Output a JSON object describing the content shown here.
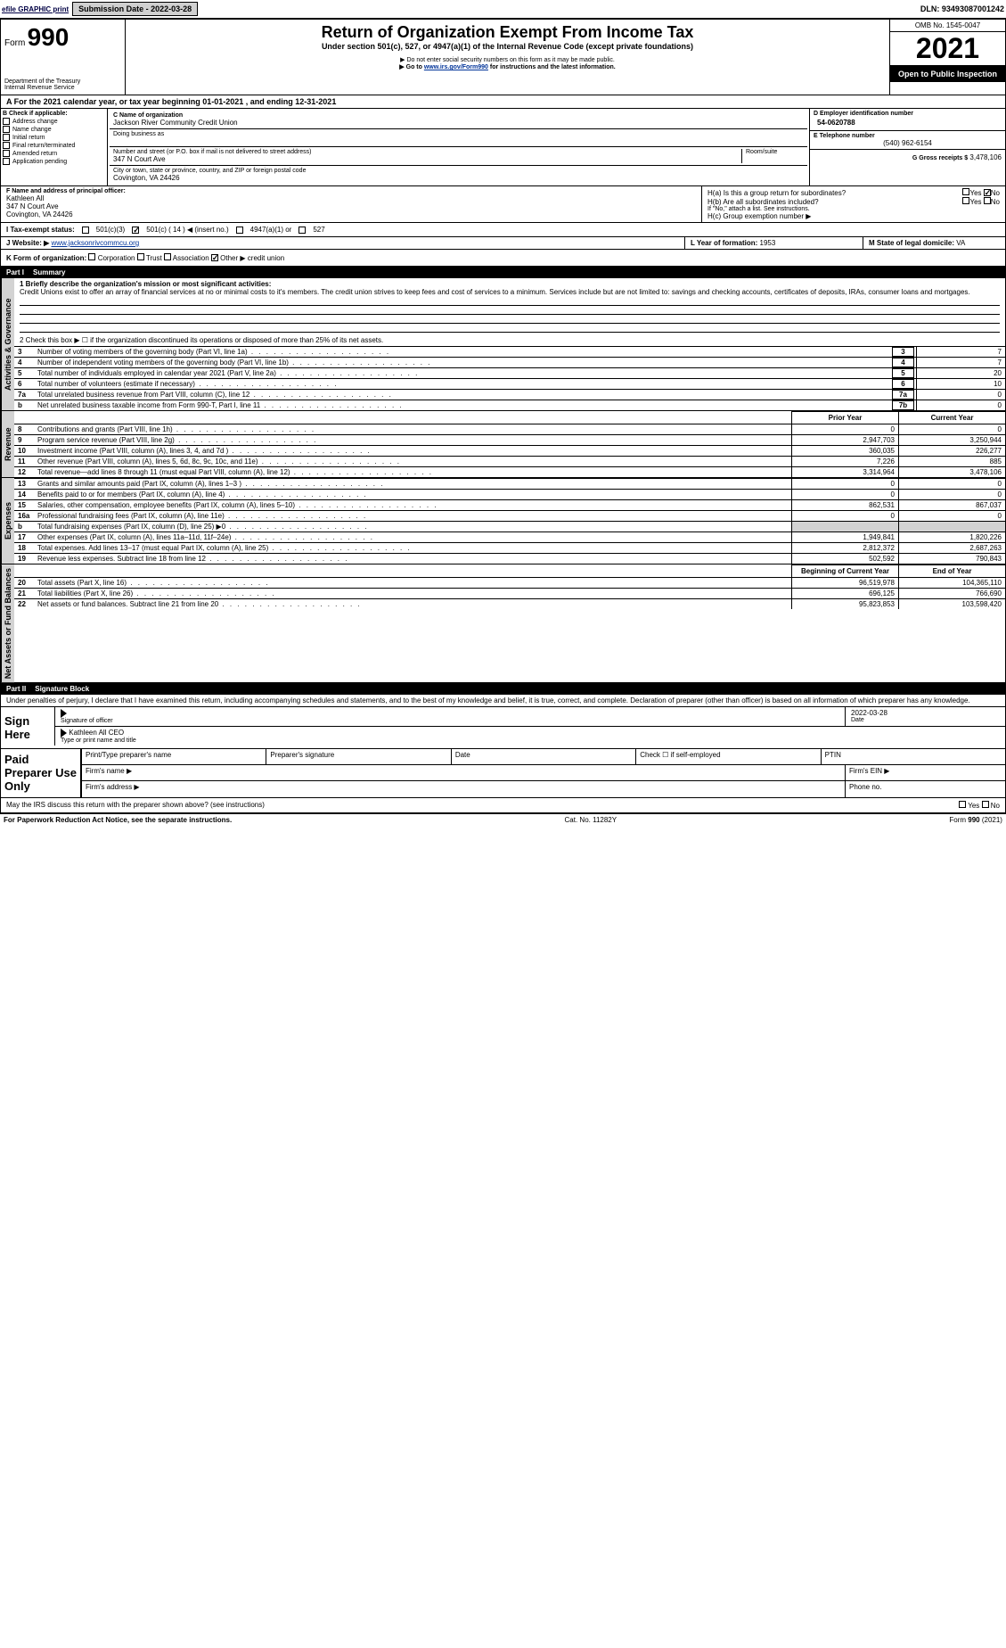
{
  "topbar": {
    "efile": "efile GRAPHIC print",
    "submission": "Submission Date - 2022-03-28",
    "dln": "DLN: 93493087001242"
  },
  "header": {
    "form_label": "Form",
    "form_no": "990",
    "title": "Return of Organization Exempt From Income Tax",
    "subtitle": "Under section 501(c), 527, or 4947(a)(1) of the Internal Revenue Code (except private foundations)",
    "ssn_note": "▶ Do not enter social security numbers on this form as it may be made public.",
    "goto": "▶ Go to www.irs.gov/Form990 for instructions and the latest information.",
    "irs_link": "www.irs.gov/Form990",
    "dept": "Department of the Treasury",
    "irs": "Internal Revenue Service",
    "omb": "OMB No. 1545-0047",
    "year": "2021",
    "open": "Open to Public Inspection"
  },
  "periodA": "A For the 2021 calendar year, or tax year beginning 01-01-2021   , and ending 12-31-2021",
  "boxB": {
    "label": "B Check if applicable:",
    "items": [
      "Address change",
      "Name change",
      "Initial return",
      "Final return/terminated",
      "Amended return",
      "Application pending"
    ]
  },
  "boxC": {
    "label": "C Name of organization",
    "name": "Jackson River Community Credit Union",
    "dba_label": "Doing business as",
    "addr_label": "Number and street (or P.O. box if mail is not delivered to street address)",
    "room": "Room/suite",
    "street": "347 N Court Ave",
    "city_label": "City or town, state or province, country, and ZIP or foreign postal code",
    "city": "Covington, VA  24426"
  },
  "boxD": {
    "label": "D Employer identification number",
    "ein": "54-0620788"
  },
  "boxE": {
    "label": "E Telephone number",
    "phone": "(540) 962-6154"
  },
  "boxG": {
    "label": "G Gross receipts $",
    "val": "3,478,106"
  },
  "boxF": {
    "label": "F Name and address of principal officer:",
    "name": "Kathleen All",
    "street": "347 N Court Ave",
    "city": "Covington, VA  24426"
  },
  "boxH": {
    "ha": "H(a)  Is this a group return for subordinates?",
    "hb": "H(b)  Are all subordinates included?",
    "hb_note": "If \"No,\" attach a list. See instructions.",
    "hc": "H(c)  Group exemption number ▶",
    "yes": "Yes",
    "no": "No"
  },
  "taxExempt": {
    "label": "I   Tax-exempt status:",
    "c3": "501(c)(3)",
    "c": "501(c) ( 14 ) ◀ (insert no.)",
    "a1": "4947(a)(1) or",
    "s527": "527"
  },
  "boxJ": {
    "label": "J   Website: ▶",
    "url": "www.jacksonrivcommcu.org"
  },
  "boxK": {
    "label": "K Form of organization:",
    "corp": "Corporation",
    "trust": "Trust",
    "assoc": "Association",
    "other": "Other ▶",
    "other_val": "credit union"
  },
  "boxL": {
    "label": "L Year of formation:",
    "val": "1953"
  },
  "boxM": {
    "label": "M State of legal domicile:",
    "val": "VA"
  },
  "part1": {
    "label": "Part I",
    "title": "Summary"
  },
  "summary": {
    "q1": "1  Briefly describe the organization's mission or most significant activities:",
    "mission": "Credit Unions exist to offer an array of financial services at no or minimal costs to it's members. The credit union strives to keep fees and cost of services to a minimum. Services include but are not limited to: savings and checking accounts, certificates of deposits, IRAs, consumer loans and mortgages.",
    "q2": "2   Check this box ▶ ☐  if the organization discontinued its operations or disposed of more than 25% of its net assets.",
    "lines_gov": [
      {
        "n": "3",
        "t": "Number of voting members of the governing body (Part VI, line 1a)",
        "b": "3",
        "v": "7"
      },
      {
        "n": "4",
        "t": "Number of independent voting members of the governing body (Part VI, line 1b)",
        "b": "4",
        "v": "7"
      },
      {
        "n": "5",
        "t": "Total number of individuals employed in calendar year 2021 (Part V, line 2a)",
        "b": "5",
        "v": "20"
      },
      {
        "n": "6",
        "t": "Total number of volunteers (estimate if necessary)",
        "b": "6",
        "v": "10"
      },
      {
        "n": "7a",
        "t": "Total unrelated business revenue from Part VIII, column (C), line 12",
        "b": "7a",
        "v": "0"
      },
      {
        "n": "b",
        "t": "Net unrelated business taxable income from Form 990-T, Part I, line 11",
        "b": "7b",
        "v": "0"
      }
    ],
    "col_prior": "Prior Year",
    "col_curr": "Current Year",
    "rev": [
      {
        "n": "8",
        "t": "Contributions and grants (Part VIII, line 1h)",
        "p": "0",
        "c": "0"
      },
      {
        "n": "9",
        "t": "Program service revenue (Part VIII, line 2g)",
        "p": "2,947,703",
        "c": "3,250,944"
      },
      {
        "n": "10",
        "t": "Investment income (Part VIII, column (A), lines 3, 4, and 7d )",
        "p": "360,035",
        "c": "226,277"
      },
      {
        "n": "11",
        "t": "Other revenue (Part VIII, column (A), lines 5, 6d, 8c, 9c, 10c, and 11e)",
        "p": "7,226",
        "c": "885"
      },
      {
        "n": "12",
        "t": "Total revenue—add lines 8 through 11 (must equal Part VIII, column (A), line 12)",
        "p": "3,314,964",
        "c": "3,478,106"
      }
    ],
    "exp": [
      {
        "n": "13",
        "t": "Grants and similar amounts paid (Part IX, column (A), lines 1–3 )",
        "p": "0",
        "c": "0"
      },
      {
        "n": "14",
        "t": "Benefits paid to or for members (Part IX, column (A), line 4)",
        "p": "0",
        "c": "0"
      },
      {
        "n": "15",
        "t": "Salaries, other compensation, employee benefits (Part IX, column (A), lines 5–10)",
        "p": "862,531",
        "c": "867,037"
      },
      {
        "n": "16a",
        "t": "Professional fundraising fees (Part IX, column (A), line 11e)",
        "p": "0",
        "c": "0"
      },
      {
        "n": "b",
        "t": "Total fundraising expenses (Part IX, column (D), line 25) ▶0",
        "p": "",
        "c": "",
        "shade": true
      },
      {
        "n": "17",
        "t": "Other expenses (Part IX, column (A), lines 11a–11d, 11f–24e)",
        "p": "1,949,841",
        "c": "1,820,226"
      },
      {
        "n": "18",
        "t": "Total expenses. Add lines 13–17 (must equal Part IX, column (A), line 25)",
        "p": "2,812,372",
        "c": "2,687,263"
      },
      {
        "n": "19",
        "t": "Revenue less expenses. Subtract line 18 from line 12",
        "p": "502,592",
        "c": "790,843"
      }
    ],
    "col_beg": "Beginning of Current Year",
    "col_end": "End of Year",
    "net": [
      {
        "n": "20",
        "t": "Total assets (Part X, line 16)",
        "p": "96,519,978",
        "c": "104,365,110"
      },
      {
        "n": "21",
        "t": "Total liabilities (Part X, line 26)",
        "p": "696,125",
        "c": "766,690"
      },
      {
        "n": "22",
        "t": "Net assets or fund balances. Subtract line 21 from line 20",
        "p": "95,823,853",
        "c": "103,598,420"
      }
    ],
    "sidelabels": {
      "gov": "Activities & Governance",
      "rev": "Revenue",
      "exp": "Expenses",
      "net": "Net Assets or Fund Balances"
    }
  },
  "part2": {
    "label": "Part II",
    "title": "Signature Block"
  },
  "sig": {
    "perjury": "Under penalties of perjury, I declare that I have examined this return, including accompanying schedules and statements, and to the best of my knowledge and belief, it is true, correct, and complete. Declaration of preparer (other than officer) is based on all information of which preparer has any knowledge.",
    "sign_here": "Sign Here",
    "sig_officer": "Signature of officer",
    "date": "Date",
    "date_val": "2022-03-28",
    "name_title": "Kathleen All CEO",
    "type_name": "Type or print name and title",
    "paid": "Paid Preparer Use Only",
    "print_name": "Print/Type preparer's name",
    "prep_sig": "Preparer's signature",
    "check_self": "Check ☐ if self-employed",
    "ptin": "PTIN",
    "firm_name": "Firm's name  ▶",
    "firm_ein": "Firm's EIN ▶",
    "firm_addr": "Firm's address ▶",
    "phone": "Phone no.",
    "discuss": "May the IRS discuss this return with the preparer shown above? (see instructions)"
  },
  "footer": {
    "pra": "For Paperwork Reduction Act Notice, see the separate instructions.",
    "cat": "Cat. No. 11282Y",
    "form": "Form 990 (2021)"
  },
  "colors": {
    "black": "#000000",
    "gray_btn": "#d0d0d0",
    "gray_side": "#d3d3d3",
    "link": "#003399"
  }
}
